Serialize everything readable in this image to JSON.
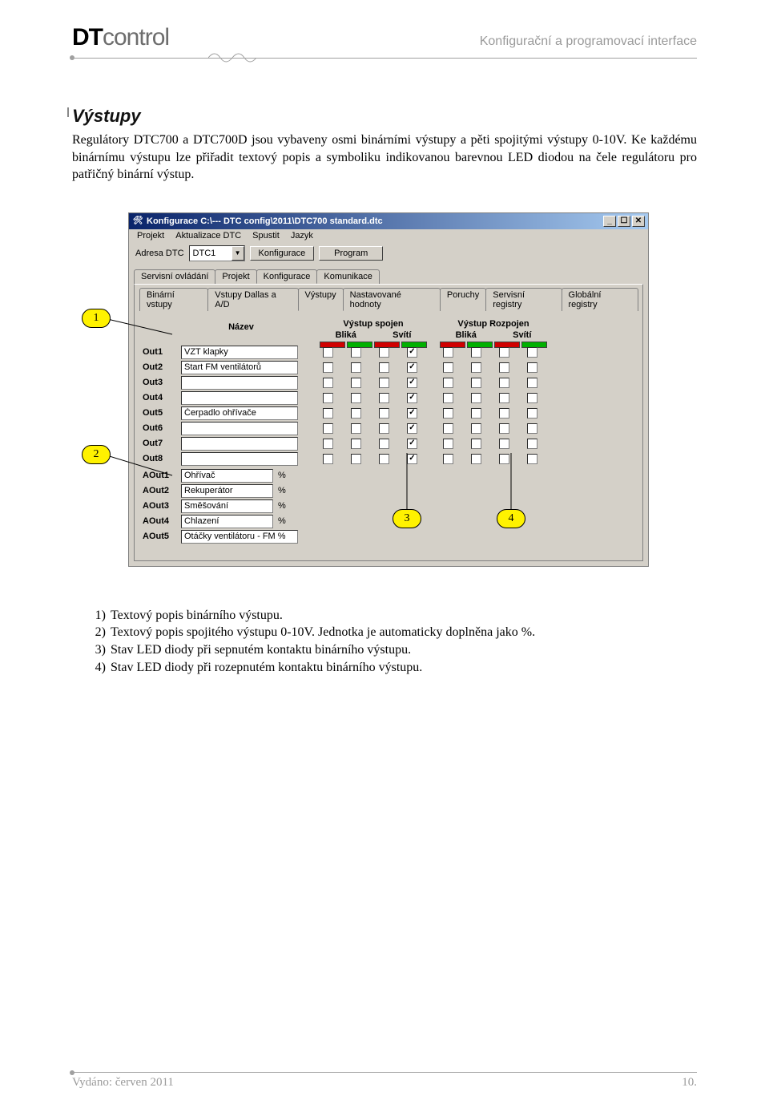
{
  "header": {
    "brand_bold": "DT",
    "brand_light": "control",
    "right": "Konfigurační a programovací interface"
  },
  "section": {
    "title": "Výstupy",
    "para": "Regulátory DTC700 a DTC700D jsou vybaveny osmi binárními výstupy a pěti spojitými výstupy 0-10V. Ke každému binárnímu výstupu lze přiřadit textový popis a symboliku indikovanou barevnou LED diodou na čele regulátoru pro patřičný binární výstup."
  },
  "window": {
    "title": "Konfigurace C:\\--- DTC config\\2011\\DTC700 standard.dtc",
    "win_title_icon": "🛠",
    "win_min": "_",
    "win_max": "☐",
    "win_close": "✕",
    "menu": [
      "Projekt",
      "Aktualizace DTC",
      "Spustit",
      "Jazyk"
    ],
    "addr_label": "Adresa DTC",
    "addr_value": "DTC1",
    "btn_konfig": "Konfigurace",
    "btn_program": "Program",
    "tabs_main": [
      "Servisní ovládání",
      "Projekt",
      "Konfigurace",
      "Komunikace"
    ],
    "tabs_main_active": 2,
    "tabs_sub": [
      "Binární vstupy",
      "Vstupy Dallas a A/D",
      "Výstupy",
      "Nastavované hodnoty",
      "Poruchy",
      "Servisní registry",
      "Globální registry"
    ],
    "tabs_sub_active": 2,
    "col_name": "Název",
    "grp1": {
      "title": "Výstup spojen",
      "sub1": "Bliká",
      "sub2": "Svítí"
    },
    "grp2": {
      "title": "Výstup Rozpojen",
      "sub1": "Bliká",
      "sub2": "Svítí"
    },
    "rows": [
      {
        "lbl": "Out1",
        "name": "VZT klapky",
        "c": [
          false,
          false,
          false,
          true,
          false,
          false,
          false,
          false
        ]
      },
      {
        "lbl": "Out2",
        "name": "Start FM ventilátorů",
        "c": [
          false,
          false,
          false,
          true,
          false,
          false,
          false,
          false
        ]
      },
      {
        "lbl": "Out3",
        "name": "",
        "c": [
          false,
          false,
          false,
          true,
          false,
          false,
          false,
          false
        ]
      },
      {
        "lbl": "Out4",
        "name": "",
        "c": [
          false,
          false,
          false,
          true,
          false,
          false,
          false,
          false
        ]
      },
      {
        "lbl": "Out5",
        "name": "Čerpadlo ohřívače",
        "c": [
          false,
          false,
          false,
          true,
          false,
          false,
          false,
          false
        ]
      },
      {
        "lbl": "Out6",
        "name": "",
        "c": [
          false,
          false,
          false,
          true,
          false,
          false,
          false,
          false
        ]
      },
      {
        "lbl": "Out7",
        "name": "",
        "c": [
          false,
          false,
          false,
          true,
          false,
          false,
          false,
          false
        ]
      },
      {
        "lbl": "Out8",
        "name": "",
        "c": [
          false,
          false,
          false,
          true,
          false,
          false,
          false,
          false
        ]
      }
    ],
    "a_rows": [
      {
        "lbl": "AOut1",
        "name": "Ohřívač",
        "unit": "%"
      },
      {
        "lbl": "AOut2",
        "name": "Rekuperátor",
        "unit": "%"
      },
      {
        "lbl": "AOut3",
        "name": "Směšování",
        "unit": "%"
      },
      {
        "lbl": "AOut4",
        "name": "Chlazení",
        "unit": "%"
      },
      {
        "lbl": "AOut5",
        "name": "Otáčky ventilátoru - FM %",
        "unit": ""
      }
    ]
  },
  "callouts": {
    "c1": "1",
    "c2": "2",
    "c3": "3",
    "c4": "4"
  },
  "legend": [
    {
      "n": "1)",
      "t": "Textový popis binárního výstupu."
    },
    {
      "n": "2)",
      "t": "Textový popis spojitého výstupu 0-10V. Jednotka je automaticky doplněna jako %."
    },
    {
      "n": "3)",
      "t": "Stav LED diody při sepnutém kontaktu binárního výstupu."
    },
    {
      "n": "4)",
      "t": "Stav LED diody při rozepnutém kontaktu binárního výstupu."
    }
  ],
  "footer": {
    "left_lbl": "Vydáno: ",
    "left_val": "červen 2011",
    "page": "10."
  }
}
